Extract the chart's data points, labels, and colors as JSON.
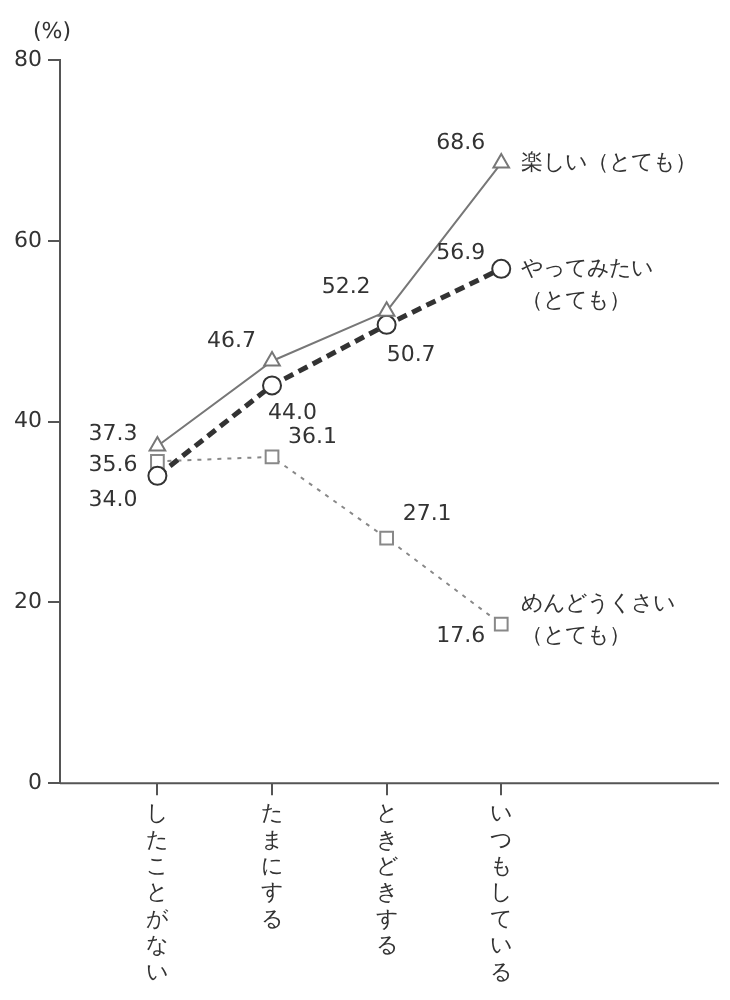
{
  "chart_data": {
    "type": "line",
    "ylabel": "(%)",
    "categories": [
      "したことがない",
      "たまにする",
      "ときどきする",
      "いつもしている"
    ],
    "series": [
      {
        "name": "楽しい（とても）",
        "color": "#777777",
        "marker": "triangle",
        "line_style": "solid",
        "values": [
          37.3,
          46.7,
          52.2,
          68.6
        ],
        "value_labels": [
          "37.3",
          "46.7",
          "52.2",
          "68.6"
        ]
      },
      {
        "name": "やってみたい（とても）",
        "color": "#333333",
        "marker": "circle",
        "line_style": "dashed",
        "values": [
          34.0,
          44.0,
          50.7,
          56.9
        ],
        "value_labels": [
          "34.0",
          "44.0",
          "50.7",
          "56.9"
        ]
      },
      {
        "name": "めんどうくさい（とても）",
        "color": "#888888",
        "marker": "square",
        "line_style": "dotted",
        "values": [
          35.6,
          36.1,
          27.1,
          17.6
        ],
        "value_labels": [
          "35.6",
          "36.1",
          "27.1",
          "17.6"
        ]
      }
    ],
    "ylim": [
      0,
      80
    ],
    "yticks": [
      0,
      20,
      40,
      60,
      80
    ],
    "grid": false,
    "legend": false
  }
}
